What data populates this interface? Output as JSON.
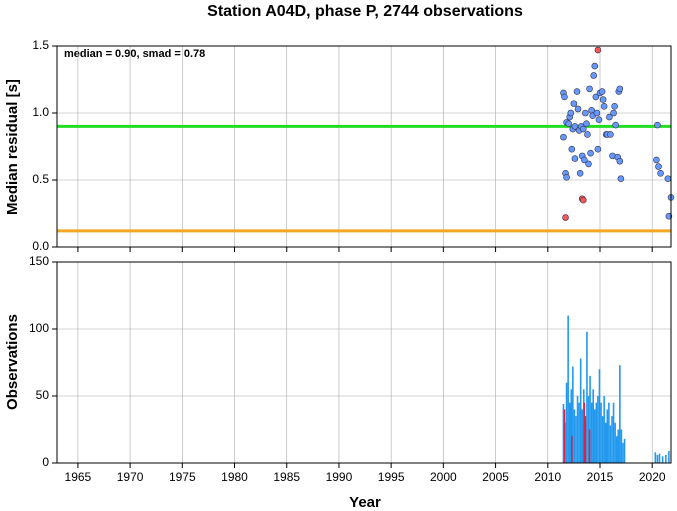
{
  "chart_data": [
    {
      "type": "scatter",
      "title": "Station A04D, phase P, 2744 observations",
      "ylabel": "Median residual [s]",
      "annotation": "median = 0.90, smad = 0.78",
      "xlim": [
        1963,
        2021.8
      ],
      "xticks": [
        1965,
        1970,
        1975,
        1980,
        1985,
        1990,
        1995,
        2000,
        2005,
        2010,
        2015,
        2020
      ],
      "ylim": [
        0,
        1.5
      ],
      "yticks": [
        {
          "value": 0,
          "label": "0.0"
        },
        {
          "value": 0.5,
          "label": "0.5"
        },
        {
          "value": 1,
          "label": "1.0"
        },
        {
          "value": 1.5,
          "label": "1.5"
        }
      ],
      "grid": true,
      "hlines": [
        {
          "value": 0.9,
          "color": "#22dd22"
        },
        {
          "value": 0.12,
          "color": "#f5a623"
        }
      ],
      "series": [
        {
          "color": "#6699ff",
          "x": [
            2011.5,
            2011.6,
            2011.5,
            2011.7,
            2011.8,
            2011.8,
            2012.0,
            2012.1,
            2012.2,
            2012.3,
            2012.4,
            2012.5,
            2012.6,
            2012.6,
            2012.8,
            2012.9,
            2013.0,
            2013.1,
            2013.2,
            2013.3,
            2013.4,
            2013.5,
            2013.6,
            2013.7,
            2013.8,
            2013.9,
            2014.0,
            2014.1,
            2014.2,
            2014.3,
            2014.4,
            2014.5,
            2014.6,
            2014.7,
            2014.8,
            2014.9,
            2015.0,
            2015.2,
            2015.3,
            2015.4,
            2015.6,
            2015.7,
            2015.9,
            2016.0,
            2016.2,
            2016.3,
            2016.4,
            2016.5,
            2016.7,
            2016.8,
            2016.9,
            2016.9,
            2017.0,
            2020.4,
            2020.5,
            2020.6,
            2020.8,
            2021.5,
            2021.6,
            2021.8
          ],
          "values": [
            1.15,
            1.12,
            0.82,
            0.55,
            0.52,
            0.93,
            0.92,
            0.97,
            1.0,
            0.73,
            0.88,
            1.07,
            0.9,
            0.66,
            1.16,
            1.03,
            0.87,
            0.55,
            0.9,
            0.68,
            0.88,
            0.65,
            1.0,
            0.92,
            0.84,
            0.62,
            1.18,
            0.7,
            1.02,
            0.98,
            1.28,
            1.35,
            1.12,
            1.0,
            0.73,
            0.95,
            1.15,
            1.16,
            1.1,
            1.05,
            0.84,
            0.84,
            0.97,
            0.84,
            0.68,
            1.0,
            1.05,
            0.91,
            0.67,
            1.16,
            1.18,
            0.64,
            0.51,
            0.65,
            0.91,
            0.6,
            0.55,
            0.51,
            0.23,
            0.37
          ]
        },
        {
          "color": "#ff5555",
          "x": [
            2011.7,
            2013.3,
            2013.4,
            2014.8
          ],
          "values": [
            0.22,
            0.36,
            0.35,
            1.47
          ]
        }
      ]
    },
    {
      "type": "bar",
      "ylabel": "Observations",
      "xlabel": "Year",
      "xlim": [
        1963,
        2021.8
      ],
      "xticks": [
        1965,
        1970,
        1975,
        1980,
        1985,
        1990,
        1995,
        2000,
        2005,
        2010,
        2015,
        2020
      ],
      "ylim": [
        0,
        150
      ],
      "yticks": [
        0,
        50,
        100,
        150
      ],
      "grid": true,
      "series": [
        {
          "color": "#2299ee",
          "x": [
            2011.5,
            2011.65,
            2011.8,
            2011.95,
            2012.1,
            2012.25,
            2012.4,
            2012.55,
            2012.7,
            2012.85,
            2013.0,
            2013.15,
            2013.3,
            2013.45,
            2013.6,
            2013.75,
            2013.9,
            2014.05,
            2014.2,
            2014.35,
            2014.5,
            2014.65,
            2014.8,
            2014.95,
            2015.1,
            2015.25,
            2015.4,
            2015.55,
            2015.7,
            2015.85,
            2016.0,
            2016.15,
            2016.3,
            2016.45,
            2016.6,
            2016.75,
            2016.9,
            2017.05,
            2017.2,
            2017.35,
            2020.3,
            2020.5,
            2020.7,
            2021.0,
            2021.3,
            2021.6
          ],
          "values": [
            44,
            30,
            60,
            110,
            45,
            55,
            72,
            40,
            35,
            50,
            45,
            78,
            40,
            55,
            30,
            98,
            50,
            65,
            45,
            55,
            40,
            45,
            50,
            70,
            45,
            35,
            50,
            30,
            40,
            45,
            28,
            35,
            45,
            30,
            20,
            25,
            73,
            25,
            15,
            18,
            8,
            6,
            7,
            5,
            6,
            9
          ]
        },
        {
          "color": "#dd2244",
          "x": [
            2011.6,
            2012.3,
            2013.5,
            2013.6,
            2014.0
          ],
          "values": [
            40,
            20,
            45,
            35,
            25
          ]
        }
      ]
    }
  ]
}
